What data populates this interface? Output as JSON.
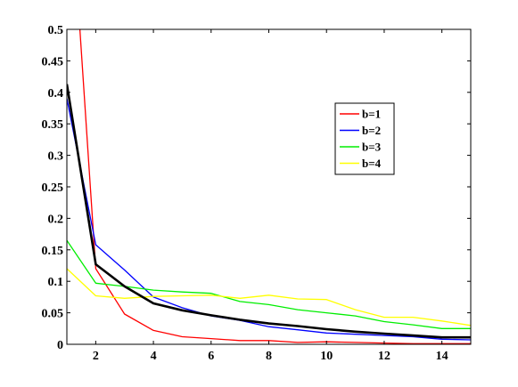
{
  "chart_data": {
    "type": "line",
    "title": "",
    "xlabel": "",
    "ylabel": "",
    "xlim": [
      1,
      15
    ],
    "ylim": [
      0,
      0.5
    ],
    "xticks": [
      2,
      4,
      6,
      8,
      10,
      12,
      14
    ],
    "yticks": [
      0,
      0.05,
      0.1,
      0.15,
      0.2,
      0.25,
      0.3,
      0.35,
      0.4,
      0.45,
      0.5
    ],
    "xtick_labels": [
      "2",
      "4",
      "6",
      "8",
      "10",
      "12",
      "14"
    ],
    "ytick_labels": [
      "0",
      "0.05",
      "0.1",
      "0.15",
      "0.2",
      "0.25",
      "0.3",
      "0.35",
      "0.4",
      "0.45",
      "0.5"
    ],
    "grid": false,
    "legend_position": "upper-right",
    "series": [
      {
        "name": "b=1",
        "color": "#ff0000",
        "x": [
          1.45,
          2,
          3,
          4,
          5,
          6,
          7,
          8,
          9,
          10,
          11,
          12,
          13,
          14,
          15
        ],
        "y": [
          0.5,
          0.12,
          0.048,
          0.022,
          0.012,
          0.009,
          0.006,
          0.006,
          0.003,
          0.004,
          0.003,
          0.002,
          0.001,
          0.001,
          0.001
        ]
      },
      {
        "name": "b=2",
        "color": "#0000ff",
        "x": [
          1,
          2,
          3,
          4,
          5,
          6,
          7,
          8,
          9,
          10,
          11,
          12,
          13,
          14,
          15
        ],
        "y": [
          0.39,
          0.158,
          0.118,
          0.075,
          0.058,
          0.045,
          0.038,
          0.028,
          0.023,
          0.018,
          0.016,
          0.014,
          0.012,
          0.008,
          0.007
        ]
      },
      {
        "name": "b=3",
        "color": "#00ee00",
        "x": [
          1,
          2,
          3,
          4,
          5,
          6,
          7,
          8,
          9,
          10,
          11,
          12,
          13,
          14,
          15
        ],
        "y": [
          0.165,
          0.097,
          0.092,
          0.086,
          0.083,
          0.081,
          0.068,
          0.063,
          0.055,
          0.05,
          0.045,
          0.036,
          0.031,
          0.025,
          0.025
        ]
      },
      {
        "name": "b=4",
        "color": "#ffff00",
        "x": [
          1,
          2,
          3,
          4,
          5,
          6,
          7,
          8,
          9,
          10,
          11,
          12,
          13,
          14,
          15
        ],
        "y": [
          0.12,
          0.077,
          0.073,
          0.076,
          0.077,
          0.078,
          0.073,
          0.078,
          0.072,
          0.071,
          0.055,
          0.043,
          0.043,
          0.037,
          0.03
        ]
      },
      {
        "color": "#000000",
        "x": [
          1,
          2,
          3,
          4,
          5,
          6,
          7,
          8,
          9,
          10,
          11,
          12,
          13,
          14,
          15
        ],
        "y": [
          0.413,
          0.127,
          0.092,
          0.065,
          0.054,
          0.046,
          0.039,
          0.033,
          0.029,
          0.024,
          0.02,
          0.017,
          0.014,
          0.011,
          0.011
        ]
      }
    ]
  }
}
